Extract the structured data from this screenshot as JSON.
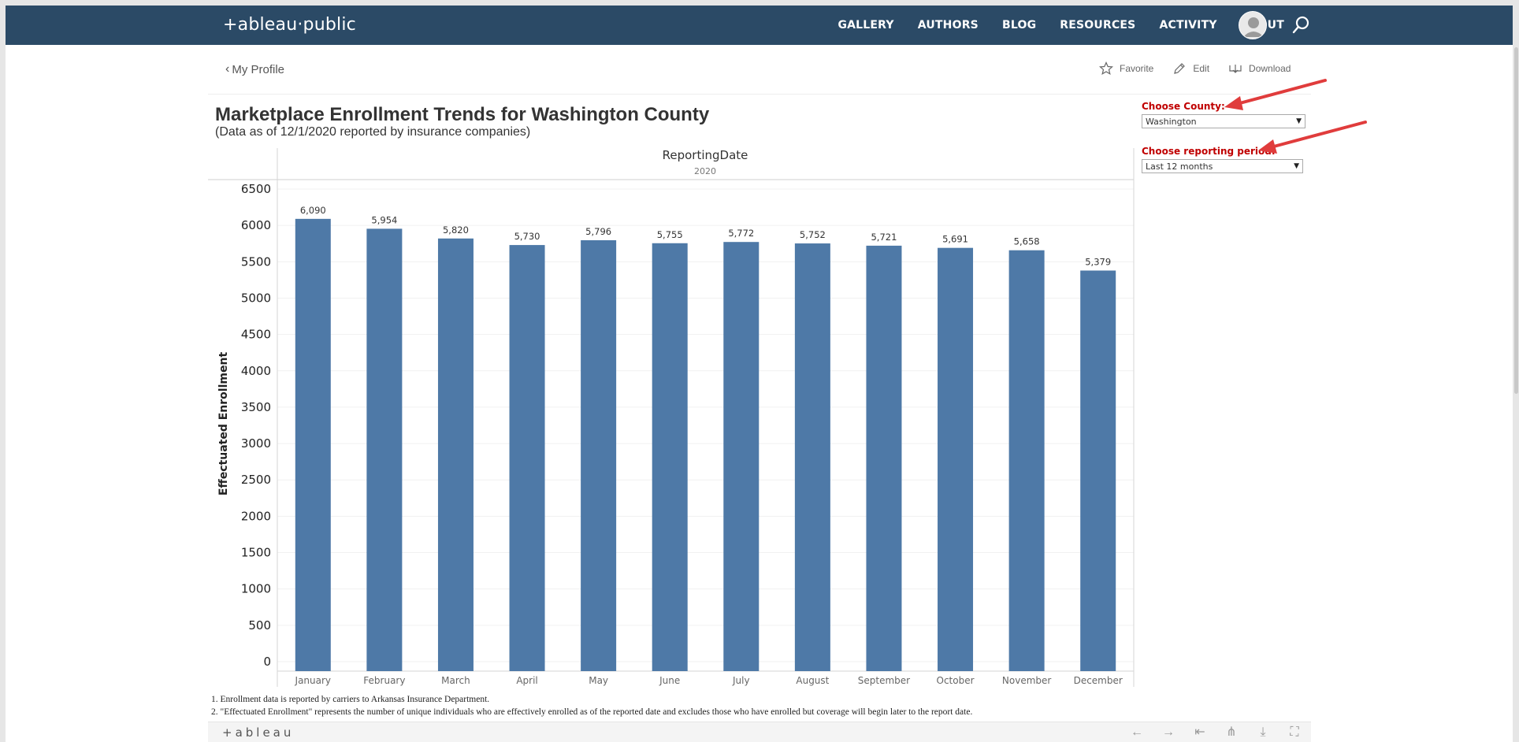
{
  "nav": {
    "logo": "+ableau·public",
    "links": [
      "GALLERY",
      "AUTHORS",
      "BLOG",
      "RESOURCES",
      "ACTIVITY",
      "ABOUT"
    ]
  },
  "subheader": {
    "back_label": "My Profile",
    "actions": [
      {
        "icon": "star-icon",
        "label": "Favorite"
      },
      {
        "icon": "pencil-icon",
        "label": "Edit"
      },
      {
        "icon": "download-icon",
        "label": "Download"
      }
    ]
  },
  "viz": {
    "title": "Marketplace Enrollment Trends for Washington County",
    "subtitle": "(Data as of  12/1/2020 reported by insurance companies)"
  },
  "filters": {
    "county_label": "Choose County:",
    "county_value": "Washington",
    "period_label": "Choose reporting period:",
    "period_value": "Last 12 months"
  },
  "footnotes": [
    "1. Enrollment data is reported by carriers to Arkansas Insurance Department.",
    "2. \"Effectuated Enrollment\" represents the number of unique individuals who are effectively enrolled as of the reported date and excludes those who have enrolled but coverage will begin later to the report date."
  ],
  "bottom": {
    "logo": "+ableau"
  },
  "colors": {
    "nav_bg": "#2b4a66",
    "bar": "#4e79a7",
    "filter_label": "#c00000",
    "annotation_arrow": "#e03c3c"
  },
  "chart_data": {
    "type": "bar",
    "header_title": "ReportingDate",
    "header_subtitle": "2020",
    "ylabel": "Effectuated Enrollment",
    "xlabel": "",
    "ylim": [
      0,
      6500
    ],
    "yticks": [
      "6500",
      "6000",
      "5500",
      "5000",
      "4500",
      "4000",
      "3500",
      "3000",
      "2500",
      "2000",
      "1500",
      "1000",
      "500",
      "0"
    ],
    "categories": [
      "January",
      "February",
      "March",
      "April",
      "May",
      "June",
      "July",
      "August",
      "September",
      "October",
      "November",
      "December"
    ],
    "values": [
      6090,
      5954,
      5820,
      5730,
      5796,
      5755,
      5772,
      5752,
      5721,
      5691,
      5658,
      5379
    ],
    "value_labels": [
      "6,090",
      "5,954",
      "5,820",
      "5,730",
      "5,796",
      "5,755",
      "5,772",
      "5,752",
      "5,721",
      "5,691",
      "5,658",
      "5,379"
    ],
    "grid": true,
    "legend": "none"
  }
}
